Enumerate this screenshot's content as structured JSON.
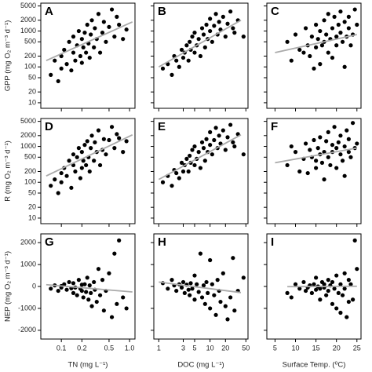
{
  "chart_data": [
    {
      "type": "scatter",
      "letter": "A",
      "ylabel": "GPP (mg O₂ m⁻³ d⁻¹)",
      "xlog": true,
      "ylog": true,
      "color": "#000000",
      "fit_color": "#aaaaaa",
      "xlim": [
        0.05,
        1.2
      ],
      "ylim": [
        7,
        6000
      ],
      "xticks": [
        0.1,
        0.2,
        0.5,
        {
          "value": 1,
          "label": "1.0"
        }
      ],
      "yticks": [
        10,
        20,
        50,
        100,
        200,
        500,
        1000,
        2000,
        5000
      ],
      "x": [
        0.07,
        0.08,
        0.09,
        0.1,
        0.1,
        0.11,
        0.12,
        0.13,
        0.14,
        0.15,
        0.15,
        0.16,
        0.17,
        0.18,
        0.19,
        0.2,
        0.2,
        0.21,
        0.22,
        0.23,
        0.24,
        0.25,
        0.26,
        0.27,
        0.28,
        0.3,
        0.31,
        0.33,
        0.35,
        0.37,
        0.4,
        0.42,
        0.45,
        0.5,
        0.55,
        0.6,
        0.65,
        0.7,
        0.8,
        0.9
      ],
      "y": [
        60,
        150,
        40,
        200,
        90,
        300,
        120,
        500,
        80,
        250,
        700,
        150,
        400,
        1000,
        200,
        600,
        130,
        350,
        900,
        250,
        1500,
        450,
        180,
        800,
        2000,
        350,
        1200,
        600,
        3000,
        250,
        900,
        1800,
        500,
        1300,
        4000,
        700,
        2500,
        1500,
        600,
        1100
      ],
      "fit": {
        "x": [
          0.06,
          1.1
        ],
        "y": [
          150,
          1800
        ]
      }
    },
    {
      "type": "scatter",
      "letter": "B",
      "xlog": true,
      "ylog": true,
      "color": "#000000",
      "fit_color": "#aaaaaa",
      "xlim": [
        0.8,
        55
      ],
      "ylim": [
        7,
        6000
      ],
      "xticks": [
        1,
        3,
        5,
        10,
        20,
        50
      ],
      "yticks": [
        10,
        20,
        50,
        100,
        200,
        500,
        1000,
        2000,
        5000
      ],
      "x": [
        1.2,
        1.5,
        1.8,
        2,
        2.2,
        2.5,
        2.8,
        3,
        3.2,
        3.5,
        3.8,
        4,
        4.2,
        4.5,
        5,
        5,
        5.5,
        6,
        6.5,
        7,
        7.5,
        8,
        8.5,
        9,
        10,
        10,
        11,
        12,
        13,
        14,
        15,
        16,
        18,
        20,
        22,
        25,
        28,
        30,
        35,
        45
      ],
      "y": [
        90,
        120,
        60,
        200,
        150,
        100,
        300,
        180,
        250,
        400,
        150,
        500,
        300,
        700,
        250,
        900,
        400,
        600,
        200,
        1200,
        800,
        350,
        1500,
        600,
        1000,
        2200,
        500,
        1400,
        3000,
        800,
        1800,
        1100,
        2500,
        700,
        1600,
        3500,
        1200,
        900,
        2000,
        700
      ],
      "fit": {
        "x": [
          1,
          40
        ],
        "y": [
          100,
          2000
        ]
      }
    },
    {
      "type": "scatter",
      "letter": "C",
      "xlog": false,
      "ylog": true,
      "color": "#000000",
      "fit_color": "#aaaaaa",
      "xlim": [
        3,
        26
      ],
      "ylim": [
        7,
        6000
      ],
      "xticks": [
        5,
        10,
        15,
        20,
        25
      ],
      "yticks": [
        10,
        20,
        50,
        100,
        200,
        500,
        1000,
        2000,
        5000
      ],
      "x": [
        8,
        9,
        10,
        11,
        12,
        12.5,
        13,
        13.5,
        14,
        14.5,
        15,
        15,
        15.5,
        16,
        16,
        16.5,
        17,
        17,
        17.5,
        18,
        18,
        18.5,
        19,
        19,
        19.5,
        20,
        20,
        20.5,
        21,
        21,
        21.5,
        22,
        22,
        22.5,
        23,
        23,
        23.5,
        24,
        24.5,
        25
      ],
      "y": [
        500,
        150,
        800,
        300,
        250,
        1200,
        400,
        200,
        700,
        90,
        1500,
        350,
        600,
        1000,
        120,
        400,
        2000,
        500,
        800,
        250,
        3000,
        600,
        1200,
        180,
        2500,
        700,
        400,
        1500,
        900,
        3500,
        500,
        100,
        1800,
        700,
        1200,
        2500,
        400,
        800,
        4000,
        1500
      ],
      "fit": {
        "x": [
          5,
          25
        ],
        "y": [
          250,
          800
        ]
      }
    },
    {
      "type": "scatter",
      "letter": "D",
      "ylabel": "R (mg O₂ m⁻³ d⁻¹)",
      "xlog": true,
      "ylog": true,
      "color": "#000000",
      "fit_color": "#aaaaaa",
      "xlim": [
        0.05,
        1.2
      ],
      "ylim": [
        7,
        6000
      ],
      "xticks": [
        0.1,
        0.2,
        0.5,
        {
          "value": 1,
          "label": "1.0"
        }
      ],
      "yticks": [
        10,
        20,
        50,
        100,
        200,
        500,
        1000,
        2000,
        5000
      ],
      "x": [
        0.07,
        0.08,
        0.09,
        0.1,
        0.1,
        0.11,
        0.12,
        0.13,
        0.14,
        0.15,
        0.15,
        0.16,
        0.17,
        0.18,
        0.19,
        0.2,
        0.2,
        0.21,
        0.22,
        0.23,
        0.24,
        0.25,
        0.26,
        0.27,
        0.28,
        0.3,
        0.31,
        0.33,
        0.35,
        0.37,
        0.4,
        0.42,
        0.45,
        0.5,
        0.55,
        0.6,
        0.65,
        0.7,
        0.8,
        0.9
      ],
      "y": [
        80,
        120,
        50,
        180,
        100,
        250,
        150,
        400,
        70,
        300,
        600,
        200,
        500,
        900,
        130,
        700,
        250,
        400,
        1100,
        300,
        1400,
        500,
        200,
        900,
        2000,
        400,
        1300,
        700,
        2800,
        300,
        800,
        1600,
        600,
        1500,
        3500,
        900,
        2200,
        1700,
        700,
        1400
      ],
      "fit": {
        "x": [
          0.06,
          1.1
        ],
        "y": [
          150,
          2100
        ]
      }
    },
    {
      "type": "scatter",
      "letter": "E",
      "xlog": true,
      "ylog": true,
      "color": "#000000",
      "fit_color": "#aaaaaa",
      "xlim": [
        0.8,
        55
      ],
      "ylim": [
        7,
        6000
      ],
      "xticks": [
        1,
        3,
        5,
        10,
        20,
        50
      ],
      "yticks": [
        10,
        20,
        50,
        100,
        200,
        500,
        1000,
        2000,
        5000
      ],
      "x": [
        1.2,
        1.5,
        1.8,
        2,
        2.2,
        2.5,
        2.8,
        3,
        3.2,
        3.5,
        3.8,
        4,
        4.2,
        4.5,
        5,
        5,
        5.5,
        6,
        6.5,
        7,
        7.5,
        8,
        8.5,
        9,
        10,
        10,
        11,
        12,
        13,
        14,
        15,
        16,
        18,
        20,
        22,
        25,
        28,
        30,
        35,
        45
      ],
      "y": [
        100,
        150,
        80,
        220,
        180,
        130,
        350,
        200,
        300,
        450,
        200,
        550,
        350,
        800,
        300,
        1000,
        450,
        700,
        250,
        1300,
        900,
        400,
        1600,
        700,
        1100,
        2500,
        600,
        1500,
        3300,
        900,
        2000,
        1200,
        2800,
        800,
        1800,
        4000,
        1300,
        1000,
        2200,
        600
      ],
      "fit": {
        "x": [
          1,
          40
        ],
        "y": [
          120,
          2100
        ]
      }
    },
    {
      "type": "scatter",
      "letter": "F",
      "xlog": false,
      "ylog": true,
      "color": "#000000",
      "fit_color": "#aaaaaa",
      "xlim": [
        3,
        26
      ],
      "ylim": [
        7,
        6000
      ],
      "xticks": [
        5,
        10,
        15,
        20,
        25
      ],
      "yticks": [
        10,
        20,
        50,
        100,
        200,
        500,
        1000,
        2000,
        5000
      ],
      "x": [
        8,
        9,
        10,
        11,
        12,
        12.5,
        13,
        13.5,
        14,
        14.5,
        15,
        15,
        15.5,
        16,
        16,
        16.5,
        17,
        17,
        17.5,
        18,
        18,
        18.5,
        19,
        19,
        19.5,
        20,
        20,
        20.5,
        21,
        21,
        21.5,
        22,
        22,
        22.5,
        23,
        23,
        23.5,
        24,
        24.5,
        25
      ],
      "y": [
        300,
        1000,
        700,
        200,
        450,
        1200,
        180,
        800,
        500,
        1500,
        400,
        250,
        900,
        600,
        1800,
        350,
        700,
        120,
        1400,
        500,
        2500,
        300,
        1100,
        700,
        3500,
        250,
        900,
        1300,
        600,
        2000,
        400,
        150,
        1000,
        2800,
        700,
        1600,
        500,
        4500,
        900,
        1200
      ],
      "fit": {
        "x": [
          5,
          25
        ],
        "y": [
          350,
          900
        ]
      }
    },
    {
      "type": "scatter",
      "letter": "G",
      "ylabel": "NEP (mg O₂ m⁻³ d⁻¹)",
      "xlabel": "TN (mg L⁻¹)",
      "xlog": true,
      "ylog": false,
      "color": "#000000",
      "fit_color": "#aaaaaa",
      "xlim": [
        0.05,
        1.2
      ],
      "ylim": [
        -2400,
        2400
      ],
      "xticks": [
        0.1,
        0.2,
        0.5,
        {
          "value": 1,
          "label": "1.0"
        }
      ],
      "yticks": [
        -2000,
        -1000,
        0,
        1000,
        2000
      ],
      "x": [
        0.07,
        0.08,
        0.09,
        0.1,
        0.1,
        0.11,
        0.12,
        0.13,
        0.14,
        0.15,
        0.15,
        0.16,
        0.17,
        0.18,
        0.19,
        0.2,
        0.2,
        0.21,
        0.22,
        0.23,
        0.24,
        0.25,
        0.26,
        0.27,
        0.28,
        0.3,
        0.31,
        0.33,
        0.35,
        0.37,
        0.4,
        0.42,
        0.45,
        0.5,
        0.55,
        0.6,
        0.65,
        0.7,
        0.8,
        0.9
      ],
      "y": [
        -100,
        50,
        -200,
        20,
        -50,
        100,
        -150,
        200,
        -80,
        -300,
        150,
        -50,
        -400,
        300,
        -100,
        -200,
        80,
        -500,
        100,
        -250,
        400,
        -600,
        50,
        -300,
        -900,
        200,
        -150,
        -700,
        800,
        -400,
        300,
        -1100,
        -200,
        600,
        -1400,
        1500,
        -800,
        2100,
        -500,
        -1000
      ],
      "fit": {
        "x": [
          0.06,
          1.1
        ],
        "y": [
          80,
          -250
        ]
      }
    },
    {
      "type": "scatter",
      "letter": "H",
      "xlabel": "DOC (mg L⁻¹)",
      "xlog": true,
      "ylog": false,
      "color": "#000000",
      "fit_color": "#aaaaaa",
      "xlim": [
        0.8,
        55
      ],
      "ylim": [
        -2400,
        2400
      ],
      "xticks": [
        1,
        3,
        5,
        10,
        20,
        50
      ],
      "yticks": [
        -2000,
        -1000,
        0,
        1000,
        2000
      ],
      "x": [
        1.2,
        1.5,
        1.8,
        2,
        2.2,
        2.5,
        2.8,
        3,
        3.2,
        3.5,
        3.8,
        4,
        4.2,
        4.5,
        5,
        5,
        5.5,
        6,
        6.5,
        7,
        7.5,
        8,
        8.5,
        9,
        10,
        10,
        11,
        12,
        13,
        14,
        15,
        16,
        18,
        20,
        22,
        25,
        28,
        30,
        35,
        45
      ],
      "y": [
        150,
        -100,
        300,
        50,
        -200,
        100,
        -50,
        200,
        -300,
        80,
        -150,
        -400,
        150,
        -100,
        500,
        -600,
        100,
        -250,
        1500,
        -500,
        50,
        -800,
        200,
        -300,
        1200,
        -1000,
        100,
        -400,
        -1300,
        300,
        -200,
        -700,
        600,
        -900,
        -1500,
        -500,
        1300,
        -1100,
        -200,
        400
      ],
      "fit": {
        "x": [
          1,
          40
        ],
        "y": [
          200,
          -280
        ]
      }
    },
    {
      "type": "scatter",
      "letter": "I",
      "xlabel": "Surface Temp. (⁰C)",
      "xlog": false,
      "ylog": false,
      "color": "#000000",
      "fit_color": "#aaaaaa",
      "xlim": [
        3,
        26
      ],
      "ylim": [
        -2400,
        2400
      ],
      "xticks": [
        5,
        10,
        15,
        20,
        25
      ],
      "yticks": [
        -2000,
        -1000,
        0,
        1000,
        2000
      ],
      "x": [
        8,
        9,
        10,
        11,
        12,
        12.5,
        13,
        13.5,
        14,
        14.5,
        15,
        15,
        15.5,
        16,
        16,
        16.5,
        17,
        17,
        17.5,
        18,
        18,
        18.5,
        19,
        19,
        19.5,
        20,
        20,
        20.5,
        21,
        21,
        21.5,
        22,
        22,
        22.5,
        23,
        23,
        23.5,
        24,
        24.5,
        25
      ],
      "y": [
        -300,
        -500,
        100,
        -100,
        200,
        -200,
        -50,
        50,
        -300,
        100,
        -150,
        400,
        0,
        -100,
        -600,
        200,
        -50,
        100,
        -400,
        300,
        -200,
        50,
        -800,
        200,
        -100,
        -1000,
        500,
        -300,
        100,
        -1200,
        -400,
        600,
        -100,
        -1400,
        300,
        -700,
        100,
        -600,
        2100,
        800
      ],
      "fit": {
        "x": [
          8,
          25
        ],
        "y": [
          -10,
          10
        ]
      }
    }
  ]
}
